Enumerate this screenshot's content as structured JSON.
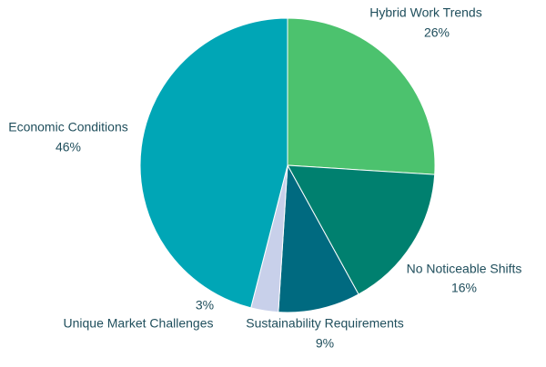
{
  "chart_data": {
    "type": "pie",
    "categories": [
      "Hybrid Work Trends",
      "No Noticeable Shifts",
      "Sustainability Requirements",
      "Unique Market Challenges",
      "Economic Conditions"
    ],
    "values": [
      26,
      16,
      9,
      3,
      46
    ],
    "value_labels": [
      "26%",
      "16%",
      "9%",
      "3%",
      "46%"
    ],
    "colors": [
      "#4cc26e",
      "#00806f",
      "#006a80",
      "#c8d0ea",
      "#00a6b6"
    ]
  }
}
